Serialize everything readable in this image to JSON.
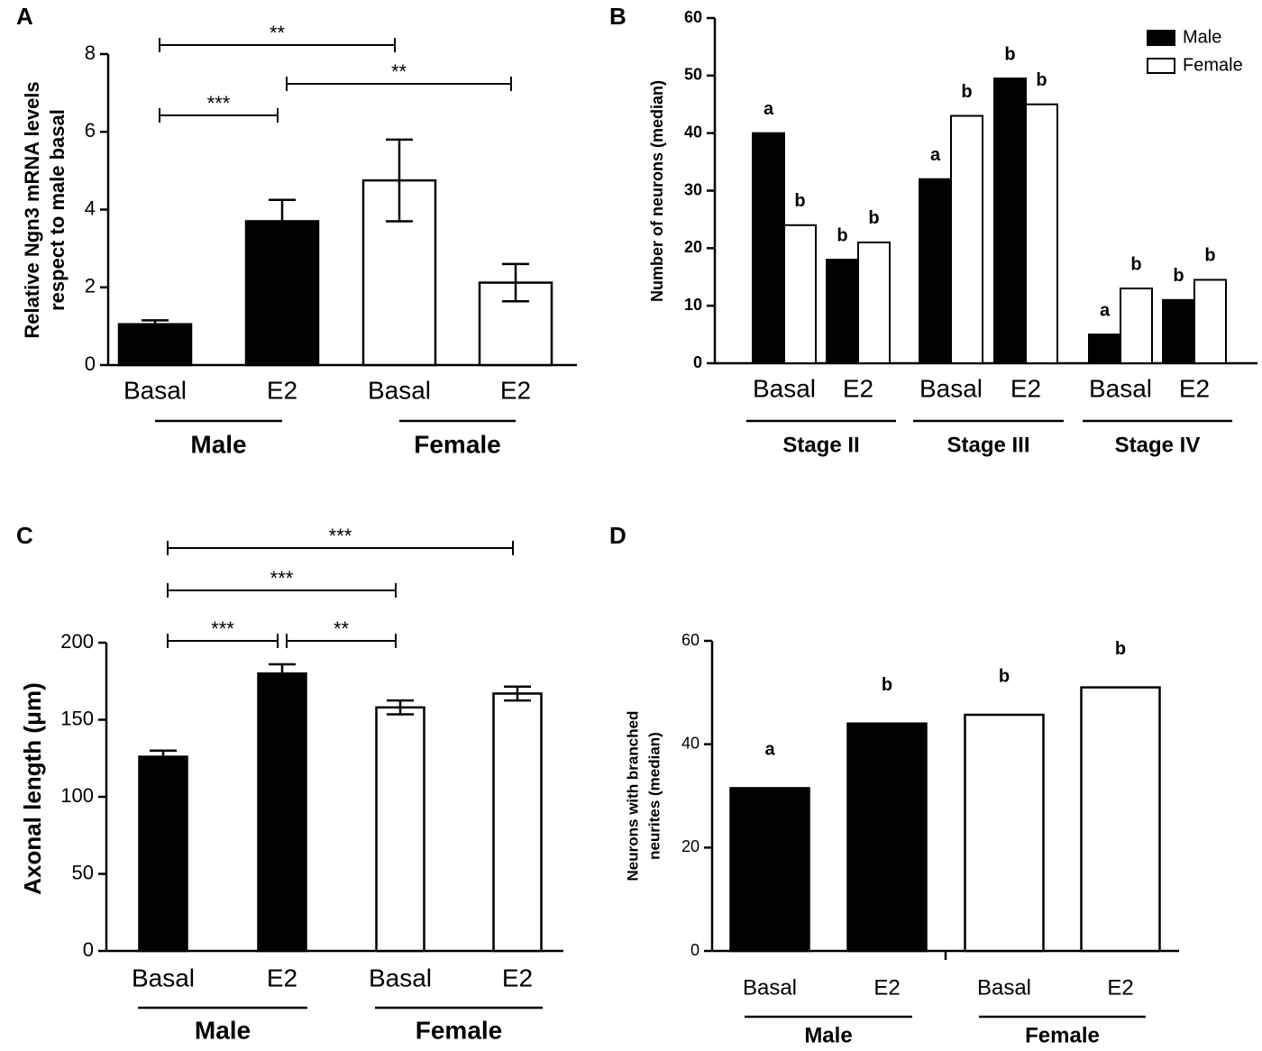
{
  "chart_data": [
    {
      "type": "bar",
      "panel": "A",
      "ylabel": [
        "Relative Ngn3 mRNA levels",
        "respect to male basal"
      ],
      "categories": [
        "Basal",
        "E2",
        "Basal",
        "E2"
      ],
      "groups": [
        "Male",
        "Female"
      ],
      "values": [
        1.05,
        3.7,
        4.75,
        2.12
      ],
      "errors": [
        0.1,
        0.55,
        1.05,
        0.48
      ],
      "colors": [
        "#000000",
        "#000000",
        "#ffffff",
        "#ffffff"
      ],
      "ylim": [
        0,
        8
      ],
      "yticks": [
        0,
        2,
        4,
        6,
        8
      ],
      "comparisons": [
        {
          "label": "**",
          "from": 0,
          "to": 2
        },
        {
          "label": "**",
          "from": 1,
          "to": 3
        },
        {
          "label": "***",
          "from": 0,
          "to": 1
        }
      ]
    },
    {
      "type": "grouped_bar",
      "panel": "B",
      "ylabel": "Number of  neurons (median)",
      "categories": [
        "Basal",
        "E2",
        "Basal",
        "E2",
        "Basal",
        "E2"
      ],
      "groups": [
        "Stage II",
        "Stage III",
        "Stage IV"
      ],
      "series": [
        {
          "name": "Male",
          "color": "#000000",
          "values": [
            40,
            18,
            32,
            49.5,
            5,
            11
          ],
          "letters": [
            "a",
            "b",
            "a",
            "b",
            "a",
            "b"
          ]
        },
        {
          "name": "Female",
          "color": "#ffffff",
          "values": [
            24,
            21,
            43,
            45,
            13,
            14.5
          ],
          "letters": [
            "b",
            "b",
            "b",
            "b",
            "b",
            "b"
          ]
        }
      ],
      "ylim": [
        0,
        60
      ],
      "yticks": [
        0,
        10,
        20,
        30,
        40,
        50,
        60
      ],
      "legend": "top-right"
    },
    {
      "type": "bar",
      "panel": "C",
      "ylabel": "Axonal length (μm)",
      "categories": [
        "Basal",
        "E2",
        "Basal",
        "E2"
      ],
      "groups": [
        "Male",
        "Female"
      ],
      "values": [
        126,
        180,
        158,
        167
      ],
      "errors": [
        4,
        6,
        4.5,
        4.5
      ],
      "colors": [
        "#000000",
        "#000000",
        "#ffffff",
        "#ffffff"
      ],
      "ylim": [
        0,
        200
      ],
      "yticks": [
        0,
        50,
        100,
        150,
        200
      ],
      "comparisons": [
        {
          "label": "***",
          "from": 0,
          "to": 3
        },
        {
          "label": "***",
          "from": 0,
          "to": 2
        },
        {
          "label": "***",
          "from": 0,
          "to": 1
        },
        {
          "label": "**",
          "from": 1,
          "to": 2
        }
      ]
    },
    {
      "type": "bar",
      "panel": "D",
      "ylabel": [
        "Neurons with branched",
        "neurites (median)"
      ],
      "categories": [
        "Basal",
        "E2",
        "Basal",
        "E2"
      ],
      "groups": [
        "Male",
        "Female"
      ],
      "values": [
        31.5,
        44,
        45.7,
        51
      ],
      "letters": [
        "a",
        "b",
        "b",
        "b"
      ],
      "colors": [
        "#000000",
        "#000000",
        "#ffffff",
        "#ffffff"
      ],
      "ylim": [
        0,
        60
      ],
      "yticks": [
        0,
        20,
        40,
        60
      ]
    }
  ]
}
